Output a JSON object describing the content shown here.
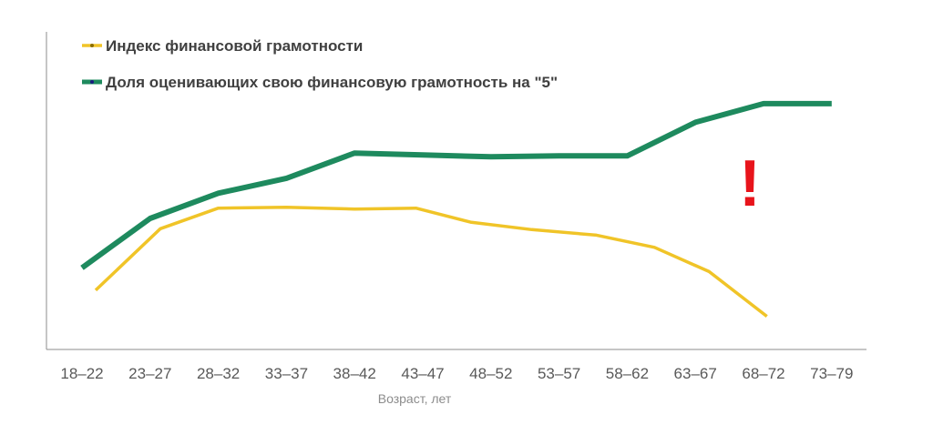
{
  "colors": {
    "index_series": "#f0c428",
    "self_rating_series": "#1e8a5e",
    "annotation": "#e8141b",
    "axis": "#8c8c8c",
    "tick_text": "#595959"
  },
  "chart_data": {
    "type": "line",
    "categories": [
      "18–22",
      "23–27",
      "28–32",
      "33–37",
      "38–42",
      "43–47",
      "48–52",
      "53–57",
      "58–62",
      "63–67",
      "68–72",
      "73–79"
    ],
    "xlabel": "Возраст, лет",
    "ylabel": "",
    "title": "",
    "grid": false,
    "y_axis_labels": false,
    "legend_position": "top-left",
    "series": [
      {
        "name": "Индекс финансовой грамотности",
        "color": "#f0c428",
        "x": [
          0.2,
          1.15,
          2.0,
          3.0,
          4.0,
          4.9,
          5.7,
          6.6,
          7.55,
          8.4,
          9.2,
          10.05
        ],
        "values": [
          2.2,
          5.5,
          6.6,
          6.65,
          6.55,
          6.6,
          5.85,
          5.45,
          5.15,
          4.5,
          3.2,
          0.8
        ]
      },
      {
        "name": "Доля оценивающих свою финансовую грамотность на \"5\"",
        "color": "#1e8a5e",
        "x": [
          0,
          1,
          2,
          3,
          4,
          5,
          6,
          7,
          8,
          9,
          10,
          11
        ],
        "values": [
          3.4,
          6.05,
          7.4,
          8.2,
          9.55,
          9.45,
          9.35,
          9.4,
          9.4,
          11.2,
          12.2,
          12.2
        ]
      }
    ],
    "annotations": [
      {
        "text": "!",
        "near_category": "68–72"
      }
    ]
  }
}
